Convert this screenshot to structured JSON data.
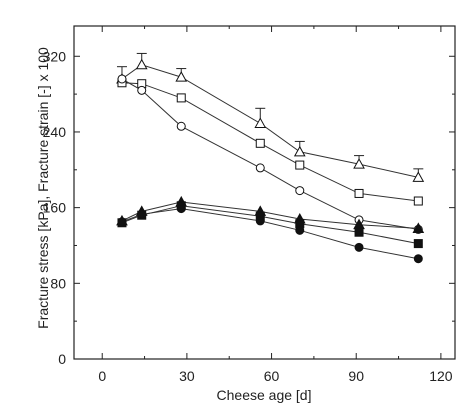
{
  "chart_data": {
    "type": "scatter",
    "xlabel": "Cheese age [d]",
    "ylabel": "Fracture stress [kPa], Fracture strain [-] x 100",
    "xlim": [
      -10,
      125
    ],
    "ylim": [
      0,
      352
    ],
    "x_ticks": [
      "0",
      "30",
      "60",
      "90",
      "120"
    ],
    "y_ticks": [
      "0",
      "80",
      "160",
      "240",
      "320"
    ],
    "grid": false,
    "legend": "none",
    "series": [
      {
        "marker": "triangle-open",
        "errorbars": true,
        "x": [
          7,
          14,
          28,
          56,
          70,
          91,
          112
        ],
        "y": [
          296,
          311,
          298,
          249,
          219,
          206,
          192
        ],
        "err": [
          13,
          12,
          9,
          16,
          11,
          9,
          9
        ]
      },
      {
        "marker": "square-open",
        "x": [
          7,
          14,
          28,
          56,
          70,
          91,
          112
        ],
        "y": [
          292,
          291,
          276,
          228,
          205,
          175,
          167
        ]
      },
      {
        "marker": "circle-open",
        "x": [
          7,
          14,
          28,
          56,
          70,
          91,
          112
        ],
        "y": [
          296,
          284,
          246,
          202,
          178,
          147,
          137
        ]
      },
      {
        "marker": "triangle-filled",
        "x": [
          7,
          14,
          28,
          56,
          70,
          91,
          112
        ],
        "y": [
          146,
          156,
          166,
          156,
          148,
          142,
          138
        ]
      },
      {
        "marker": "square-filled",
        "x": [
          7,
          14,
          28,
          56,
          70,
          91,
          112
        ],
        "y": [
          144,
          152,
          162,
          151,
          143,
          134,
          122
        ]
      },
      {
        "marker": "circle-filled",
        "x": [
          7,
          14,
          28,
          56,
          70,
          91,
          112
        ],
        "y": [
          145,
          153,
          159,
          146,
          136,
          118,
          106
        ]
      }
    ]
  }
}
